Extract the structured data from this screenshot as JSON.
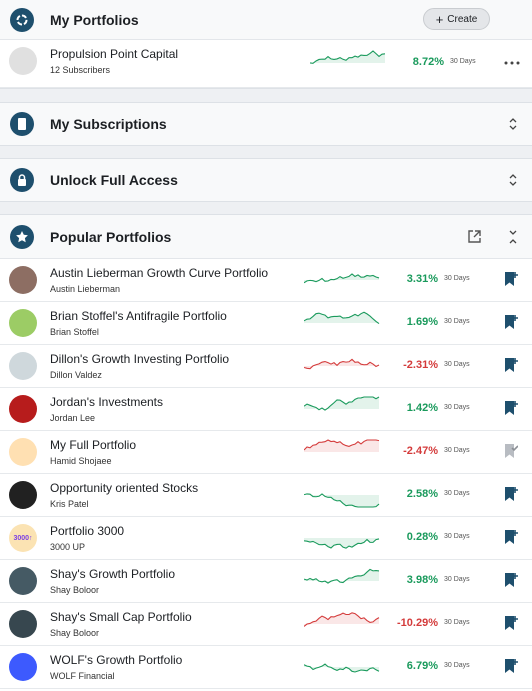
{
  "my_portfolios": {
    "title": "My Portfolios",
    "create": "Create",
    "items": [
      {
        "name": "Propulsion Point Capital",
        "subtitle": "12 Subscribers",
        "return": "8.72%",
        "period": "30 Days",
        "color": "#1a9a5c"
      }
    ]
  },
  "subscriptions": {
    "title": "My Subscriptions"
  },
  "unlock": {
    "title": "Unlock Full Access"
  },
  "popular": {
    "title": "Popular Portfolios",
    "items": [
      {
        "name": "Austin Lieberman Growth Curve Portfolio",
        "subtitle": "Austin Lieberman",
        "return": "3.31%",
        "period": "30 Days",
        "color": "#1a9a5c",
        "saved": false
      },
      {
        "name": "Brian Stoffel's Antifragile Portfolio",
        "subtitle": "Brian Stoffel",
        "return": "1.69%",
        "period": "30 Days",
        "color": "#1a9a5c",
        "saved": false
      },
      {
        "name": "Dillon's Growth Investing Portfolio",
        "subtitle": "Dillon Valdez",
        "return": "-2.31%",
        "period": "30 Days",
        "color": "#d43b3b",
        "saved": false
      },
      {
        "name": "Jordan's Investments",
        "subtitle": "Jordan Lee",
        "return": "1.42%",
        "period": "30 Days",
        "color": "#1a9a5c",
        "saved": false
      },
      {
        "name": "My Full Portfolio",
        "subtitle": "Hamid Shojaee",
        "return": "-2.47%",
        "period": "30 Days",
        "color": "#d43b3b",
        "saved": true
      },
      {
        "name": "Opportunity oriented Stocks",
        "subtitle": "Kris Patel",
        "return": "2.58%",
        "period": "30 Days",
        "color": "#1a9a5c",
        "saved": false
      },
      {
        "name": "Portfolio 3000",
        "subtitle": "3000 UP",
        "return": "0.28%",
        "period": "30 Days",
        "color": "#1a9a5c",
        "saved": false,
        "avatar_text": "3000↑"
      },
      {
        "name": "Shay's Growth Portfolio",
        "subtitle": "Shay Boloor",
        "return": "3.98%",
        "period": "30 Days",
        "color": "#1a9a5c",
        "saved": false
      },
      {
        "name": "Shay's Small Cap Portfolio",
        "subtitle": "Shay Boloor",
        "return": "-10.29%",
        "period": "30 Days",
        "color": "#d43b3b",
        "saved": false
      },
      {
        "name": "WOLF's Growth Portfolio",
        "subtitle": "WOLF Financial",
        "return": "6.79%",
        "period": "30 Days",
        "color": "#1a9a5c",
        "saved": false
      }
    ]
  }
}
